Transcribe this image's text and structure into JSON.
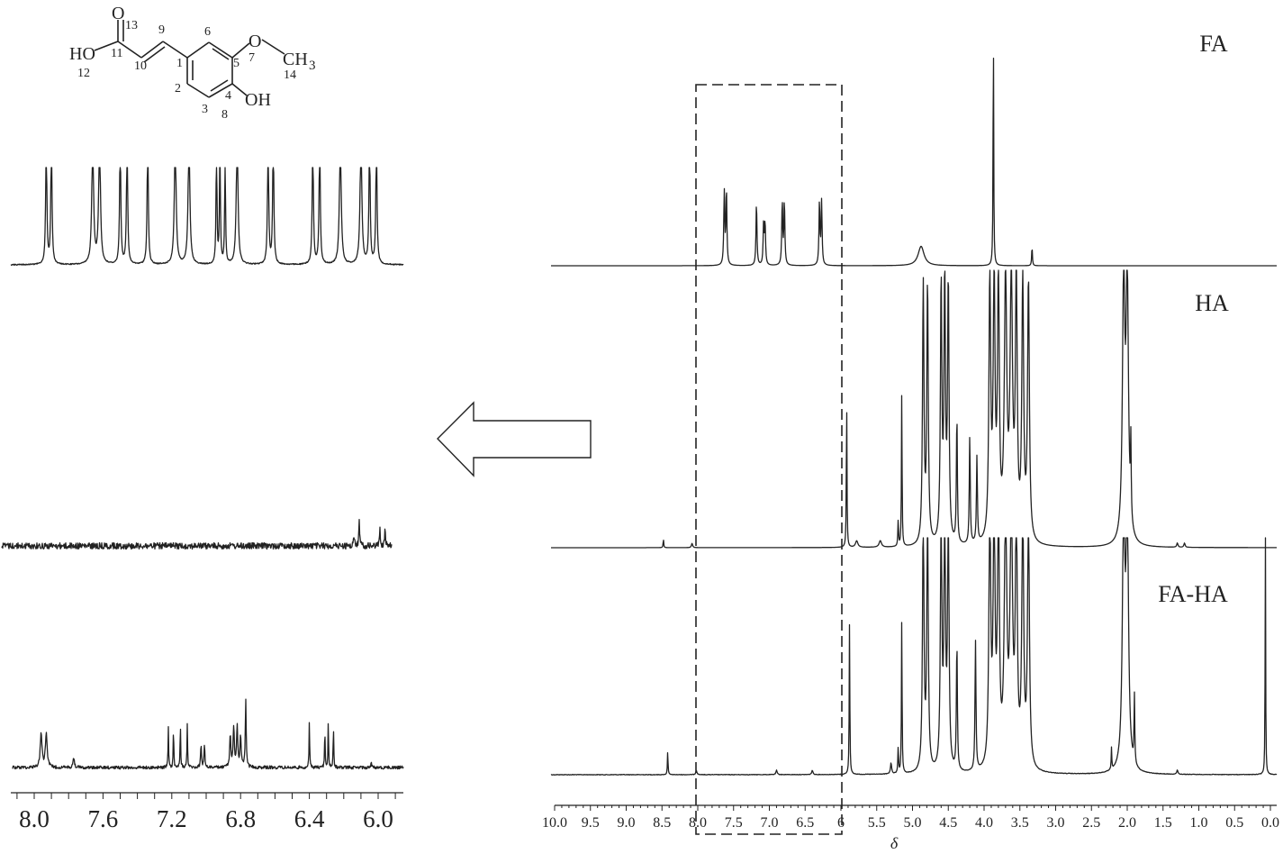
{
  "molecule": {
    "atoms": {
      "O_carbonyl": "O",
      "HO_acid": "HO",
      "O_ether": "O",
      "CH3": "CH",
      "CH3_sub": "3",
      "OH_phenol": "OH"
    },
    "numbers": [
      "13",
      "9",
      "6",
      "11",
      "10",
      "1",
      "5",
      "7",
      "14",
      "12",
      "2",
      "4",
      "3",
      "8"
    ]
  },
  "chart_data": [
    {
      "type": "line",
      "name": "full-spectra",
      "xlabel": "δ",
      "xlim": [
        10.0,
        0.0
      ],
      "x_reversed": true,
      "xticks": [
        "10.0",
        "9.5",
        "9.0",
        "8.5",
        "8.0",
        "7.5",
        "7.0",
        "6.5",
        "6",
        "5.5",
        "5.0",
        "4.5",
        "4.0",
        "3.5",
        "3.0",
        "2.5",
        "2.0",
        "1.5",
        "1.0",
        "0.5",
        "0.0"
      ],
      "series": [
        {
          "name": "FA",
          "peaks": [
            {
              "x": 7.63,
              "h": 0.3,
              "w": 0.008
            },
            {
              "x": 7.6,
              "h": 0.31,
              "w": 0.008
            },
            {
              "x": 7.18,
              "h": 0.26,
              "w": 0.008
            },
            {
              "x": 7.08,
              "h": 0.17,
              "w": 0.008
            },
            {
              "x": 7.06,
              "h": 0.17,
              "w": 0.008
            },
            {
              "x": 6.82,
              "h": 0.26,
              "w": 0.008
            },
            {
              "x": 6.79,
              "h": 0.26,
              "w": 0.008
            },
            {
              "x": 6.3,
              "h": 0.26,
              "w": 0.008
            },
            {
              "x": 6.27,
              "h": 0.26,
              "w": 0.008
            },
            {
              "x": 4.88,
              "h": 0.08,
              "w": 0.05
            },
            {
              "x": 3.87,
              "h": 1.0,
              "w": 0.005
            },
            {
              "x": 3.33,
              "h": 0.08,
              "w": 0.006
            }
          ]
        },
        {
          "name": "HA",
          "peaks": [
            {
              "x": 8.48,
              "h": 0.04,
              "w": 0.005
            },
            {
              "x": 8.08,
              "h": 0.02,
              "w": 0.01
            },
            {
              "x": 5.92,
              "h": 0.7,
              "w": 0.005
            },
            {
              "x": 5.78,
              "h": 0.03,
              "w": 0.02
            },
            {
              "x": 5.45,
              "h": 0.03,
              "w": 0.02
            },
            {
              "x": 5.2,
              "h": 0.12,
              "w": 0.006
            },
            {
              "x": 5.15,
              "h": 0.72,
              "w": 0.005
            },
            {
              "x": 4.85,
              "h": 1.2,
              "w": 0.012
            },
            {
              "x": 4.79,
              "h": 1.2,
              "w": 0.012
            },
            {
              "x": 4.6,
              "h": 1.2,
              "w": 0.012
            },
            {
              "x": 4.55,
              "h": 1.2,
              "w": 0.012
            },
            {
              "x": 4.5,
              "h": 1.2,
              "w": 0.012
            },
            {
              "x": 4.38,
              "h": 0.6,
              "w": 0.008
            },
            {
              "x": 4.2,
              "h": 0.5,
              "w": 0.008
            },
            {
              "x": 4.1,
              "h": 0.4,
              "w": 0.008
            },
            {
              "x": 3.92,
              "h": 1.2,
              "w": 0.015
            },
            {
              "x": 3.86,
              "h": 1.2,
              "w": 0.015
            },
            {
              "x": 3.8,
              "h": 1.2,
              "w": 0.015
            },
            {
              "x": 3.7,
              "h": 1.2,
              "w": 0.02
            },
            {
              "x": 3.62,
              "h": 1.2,
              "w": 0.02
            },
            {
              "x": 3.55,
              "h": 1.2,
              "w": 0.015
            },
            {
              "x": 3.46,
              "h": 1.2,
              "w": 0.015
            },
            {
              "x": 3.38,
              "h": 1.2,
              "w": 0.015
            },
            {
              "x": 2.05,
              "h": 1.2,
              "w": 0.02
            },
            {
              "x": 2.0,
              "h": 1.2,
              "w": 0.02
            },
            {
              "x": 1.95,
              "h": 0.35,
              "w": 0.006
            },
            {
              "x": 1.3,
              "h": 0.02,
              "w": 0.01
            },
            {
              "x": 1.2,
              "h": 0.02,
              "w": 0.01
            }
          ]
        },
        {
          "name": "FA-HA",
          "peaks": [
            {
              "x": 8.42,
              "h": 0.11,
              "w": 0.005
            },
            {
              "x": 8.02,
              "h": 0.02,
              "w": 0.01
            },
            {
              "x": 6.9,
              "h": 0.02,
              "w": 0.01
            },
            {
              "x": 6.4,
              "h": 0.02,
              "w": 0.01
            },
            {
              "x": 5.88,
              "h": 0.7,
              "w": 0.005
            },
            {
              "x": 5.3,
              "h": 0.05,
              "w": 0.01
            },
            {
              "x": 5.2,
              "h": 0.12,
              "w": 0.006
            },
            {
              "x": 5.15,
              "h": 0.72,
              "w": 0.005
            },
            {
              "x": 4.85,
              "h": 1.2,
              "w": 0.012
            },
            {
              "x": 4.79,
              "h": 1.2,
              "w": 0.012
            },
            {
              "x": 4.6,
              "h": 1.2,
              "w": 0.012
            },
            {
              "x": 4.55,
              "h": 1.2,
              "w": 0.012
            },
            {
              "x": 4.5,
              "h": 1.2,
              "w": 0.012
            },
            {
              "x": 4.38,
              "h": 0.6,
              "w": 0.008
            },
            {
              "x": 4.12,
              "h": 0.6,
              "w": 0.008
            },
            {
              "x": 3.92,
              "h": 1.2,
              "w": 0.015
            },
            {
              "x": 3.86,
              "h": 1.2,
              "w": 0.015
            },
            {
              "x": 3.8,
              "h": 1.2,
              "w": 0.015
            },
            {
              "x": 3.7,
              "h": 1.2,
              "w": 0.02
            },
            {
              "x": 3.62,
              "h": 1.2,
              "w": 0.02
            },
            {
              "x": 3.55,
              "h": 1.2,
              "w": 0.015
            },
            {
              "x": 3.46,
              "h": 1.2,
              "w": 0.015
            },
            {
              "x": 3.38,
              "h": 1.2,
              "w": 0.015
            },
            {
              "x": 2.22,
              "h": 0.1,
              "w": 0.005
            },
            {
              "x": 2.05,
              "h": 1.2,
              "w": 0.02
            },
            {
              "x": 2.0,
              "h": 1.2,
              "w": 0.02
            },
            {
              "x": 1.9,
              "h": 0.32,
              "w": 0.006
            },
            {
              "x": 1.3,
              "h": 0.02,
              "w": 0.01
            },
            {
              "x": 0.07,
              "h": 1.2,
              "w": 0.004
            }
          ]
        }
      ],
      "highlight_box_x": [
        8.0,
        6.0
      ]
    },
    {
      "type": "line",
      "name": "expanded-spectra",
      "xlim": [
        8.05,
        5.9
      ],
      "x_reversed": true,
      "xticks": [
        "8.0",
        "7.6",
        "7.2",
        "6.8",
        "6.4",
        "6.0"
      ],
      "series": [
        {
          "name": "FA-expanded",
          "peaks": [
            {
              "x": 7.93,
              "h": 1.2,
              "w": 0.004
            },
            {
              "x": 7.9,
              "h": 1.2,
              "w": 0.004
            },
            {
              "x": 7.66,
              "h": 1.2,
              "w": 0.006
            },
            {
              "x": 7.62,
              "h": 1.2,
              "w": 0.006
            },
            {
              "x": 7.5,
              "h": 1.2,
              "w": 0.004
            },
            {
              "x": 7.46,
              "h": 1.2,
              "w": 0.004
            },
            {
              "x": 7.34,
              "h": 1.2,
              "w": 0.004
            },
            {
              "x": 7.18,
              "h": 1.2,
              "w": 0.006
            },
            {
              "x": 7.1,
              "h": 1.2,
              "w": 0.006
            },
            {
              "x": 6.94,
              "h": 1.2,
              "w": 0.003
            },
            {
              "x": 6.92,
              "h": 1.2,
              "w": 0.003
            },
            {
              "x": 6.89,
              "h": 1.0,
              "w": 0.003
            },
            {
              "x": 6.82,
              "h": 1.2,
              "w": 0.006
            },
            {
              "x": 6.64,
              "h": 1.2,
              "w": 0.004
            },
            {
              "x": 6.61,
              "h": 1.2,
              "w": 0.004
            },
            {
              "x": 6.38,
              "h": 1.2,
              "w": 0.004
            },
            {
              "x": 6.34,
              "h": 1.2,
              "w": 0.004
            },
            {
              "x": 6.22,
              "h": 1.2,
              "w": 0.006
            },
            {
              "x": 6.1,
              "h": 1.2,
              "w": 0.006
            },
            {
              "x": 6.05,
              "h": 1.2,
              "w": 0.004
            },
            {
              "x": 6.01,
              "h": 1.2,
              "w": 0.004
            }
          ]
        },
        {
          "name": "HA-expanded",
          "peaks": [
            {
              "x": 6.14,
              "h": 0.15,
              "w": 0.003
            },
            {
              "x": 6.11,
              "h": 0.35,
              "w": 0.003
            },
            {
              "x": 5.99,
              "h": 0.25,
              "w": 0.003
            },
            {
              "x": 5.96,
              "h": 0.22,
              "w": 0.003
            }
          ]
        },
        {
          "name": "FA-HA-expanded",
          "peaks": [
            {
              "x": 7.96,
              "h": 0.38,
              "w": 0.006
            },
            {
              "x": 7.93,
              "h": 0.38,
              "w": 0.006
            },
            {
              "x": 7.77,
              "h": 0.1,
              "w": 0.005
            },
            {
              "x": 7.22,
              "h": 0.45,
              "w": 0.002
            },
            {
              "x": 7.19,
              "h": 0.45,
              "w": 0.002
            },
            {
              "x": 7.15,
              "h": 0.5,
              "w": 0.002
            },
            {
              "x": 7.11,
              "h": 0.5,
              "w": 0.002
            },
            {
              "x": 7.03,
              "h": 0.25,
              "w": 0.003
            },
            {
              "x": 7.01,
              "h": 0.25,
              "w": 0.003
            },
            {
              "x": 6.86,
              "h": 0.35,
              "w": 0.004
            },
            {
              "x": 6.84,
              "h": 0.45,
              "w": 0.004
            },
            {
              "x": 6.82,
              "h": 0.45,
              "w": 0.004
            },
            {
              "x": 6.8,
              "h": 0.35,
              "w": 0.004
            },
            {
              "x": 6.77,
              "h": 0.75,
              "w": 0.003
            },
            {
              "x": 6.4,
              "h": 0.52,
              "w": 0.002
            },
            {
              "x": 6.31,
              "h": 0.45,
              "w": 0.002
            },
            {
              "x": 6.29,
              "h": 0.5,
              "w": 0.002
            },
            {
              "x": 6.26,
              "h": 0.48,
              "w": 0.002
            },
            {
              "x": 6.04,
              "h": 0.08,
              "w": 0.002
            }
          ]
        }
      ]
    }
  ],
  "labels": {
    "FA": "FA",
    "HA": "HA",
    "FA-HA": "FA-HA",
    "xlabel": "δ"
  }
}
